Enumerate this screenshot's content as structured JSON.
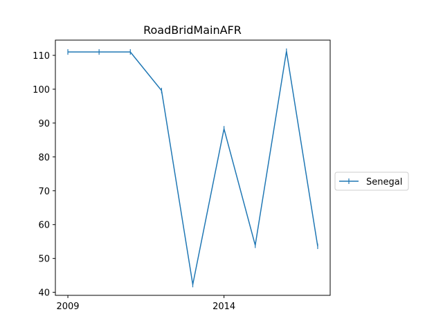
{
  "chart_data": {
    "type": "line",
    "title": "RoadBridMainAFR",
    "xlabel": "",
    "ylabel": "",
    "x": [
      2009,
      2010,
      2011,
      2012,
      2013,
      2014,
      2015,
      2016,
      2017
    ],
    "x_ticks": [
      2009,
      2014
    ],
    "x_tick_labels": [
      "2009",
      "2014"
    ],
    "xlim": [
      2008.6,
      2017.4
    ],
    "ylim": [
      39.1,
      114.5
    ],
    "y_ticks": [
      40,
      50,
      60,
      70,
      80,
      90,
      100,
      110
    ],
    "y_tick_labels": [
      "40",
      "50",
      "60",
      "70",
      "80",
      "90",
      "100",
      "110"
    ],
    "series": [
      {
        "name": "Senegal",
        "values": [
          111,
          111,
          111,
          99.6,
          42.3,
          88.3,
          53.9,
          111.2,
          53.6
        ],
        "color": "#1f77b4",
        "marker": "|"
      }
    ],
    "legend_position": "right",
    "grid": false
  }
}
